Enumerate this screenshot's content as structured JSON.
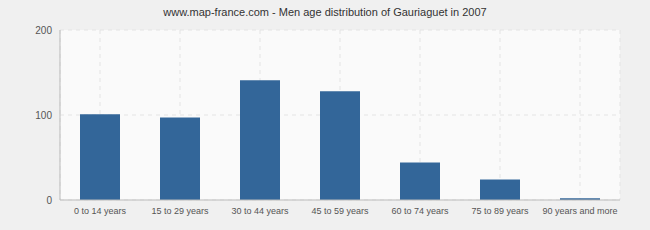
{
  "chart_data": {
    "type": "bar",
    "title": "www.map-france.com - Men age distribution of Gauriaguet in 2007",
    "categories": [
      "0 to 14 years",
      "15 to 29 years",
      "30 to 44 years",
      "45 to 59 years",
      "60 to 74 years",
      "75 to 89 years",
      "90 years and more"
    ],
    "values": [
      101,
      97,
      141,
      128,
      44,
      24,
      2
    ],
    "color": "#336699",
    "ylim": [
      0,
      200
    ],
    "yticks": [
      0,
      100,
      200
    ],
    "grid": true
  }
}
